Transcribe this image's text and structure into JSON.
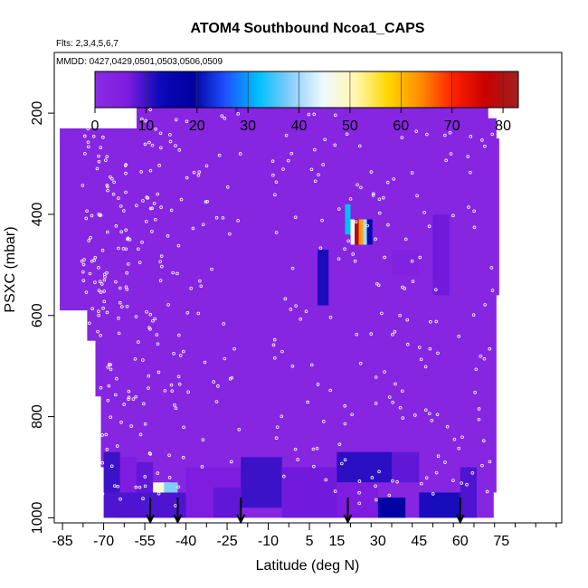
{
  "chart_data": {
    "type": "heatmap",
    "title": "ATOM4 Southbound Ncoa1_CAPS",
    "flights_note": "Flts: 2,3,4,5,6,7",
    "dates_note": "MMDD: 0427,0429,0501,0503,0506,0509",
    "xlabel": "Latitude (deg N)",
    "ylabel": "PSXC (mbar)",
    "xlim": [
      -88,
      97
    ],
    "ylim": [
      1010,
      80
    ],
    "x_ticks": [
      -85,
      -70,
      -55,
      -40,
      -25,
      -10,
      5,
      15,
      30,
      45,
      60,
      75
    ],
    "y_ticks": [
      200,
      400,
      600,
      800,
      1000
    ],
    "colorbar": {
      "min": 0,
      "max": 83,
      "ticks": [
        0,
        10,
        20,
        30,
        40,
        50,
        60,
        70,
        80
      ],
      "colors": [
        "#8a2be2",
        "#7d1ce0",
        "#0a0ab8",
        "#0000a0",
        "#1e50ff",
        "#00bfff",
        "#87cefa",
        "#f0f8ff",
        "#fff8b0",
        "#ffd700",
        "#ff8c00",
        "#ff2000",
        "#c80000",
        "#a02020"
      ]
    },
    "background_value": 2,
    "coverage": [
      [
        -86,
        230,
        590
      ],
      [
        -81,
        230,
        590
      ],
      [
        -76,
        230,
        650
      ],
      [
        -73,
        230,
        760
      ],
      [
        -71,
        230,
        900
      ],
      [
        -69,
        230,
        970
      ],
      [
        -66,
        230,
        1000
      ],
      [
        -62,
        230,
        1000
      ],
      [
        -58,
        175,
        1000
      ],
      [
        -55,
        175,
        1000
      ],
      [
        -50,
        175,
        1000
      ],
      [
        -45,
        175,
        1000
      ],
      [
        -40,
        175,
        1000
      ],
      [
        -30,
        175,
        1000
      ],
      [
        -20,
        175,
        1000
      ],
      [
        -10,
        175,
        1000
      ],
      [
        0,
        175,
        1000
      ],
      [
        10,
        175,
        1000
      ],
      [
        20,
        175,
        1000
      ],
      [
        30,
        175,
        1000
      ],
      [
        40,
        175,
        1000
      ],
      [
        50,
        175,
        1000
      ],
      [
        55,
        175,
        1000
      ],
      [
        60,
        175,
        1000
      ],
      [
        64,
        175,
        1000
      ],
      [
        68,
        175,
        1000
      ],
      [
        70,
        210,
        1000
      ],
      [
        72,
        210,
        950
      ],
      [
        73,
        250,
        560
      ],
      [
        74,
        330,
        370
      ]
    ],
    "patches": [
      {
        "lat": [
          -70,
          -64
        ],
        "p": [
          870,
          950
        ],
        "value": 10
      },
      {
        "lat": [
          -64,
          -58
        ],
        "p": [
          880,
          950
        ],
        "value": 6
      },
      {
        "lat": [
          -58,
          -52
        ],
        "p": [
          890,
          960
        ],
        "value": 8
      },
      {
        "lat": [
          -52,
          -46
        ],
        "p": [
          930,
          980
        ],
        "value": 48
      },
      {
        "lat": [
          -48,
          -43
        ],
        "p": [
          930,
          980
        ],
        "value": 38
      },
      {
        "lat": [
          -70,
          -40
        ],
        "p": [
          950,
          1000
        ],
        "value": 9
      },
      {
        "lat": [
          -40,
          -20
        ],
        "p": [
          900,
          1000
        ],
        "value": 6
      },
      {
        "lat": [
          -20,
          -5
        ],
        "p": [
          880,
          980
        ],
        "value": 10
      },
      {
        "lat": [
          -5,
          15
        ],
        "p": [
          900,
          1000
        ],
        "value": 7
      },
      {
        "lat": [
          15,
          35
        ],
        "p": [
          870,
          930
        ],
        "value": 11
      },
      {
        "lat": [
          35,
          45
        ],
        "p": [
          870,
          930
        ],
        "value": 8
      },
      {
        "lat": [
          15,
          30
        ],
        "p": [
          930,
          1000
        ],
        "value": 6
      },
      {
        "lat": [
          30,
          40
        ],
        "p": [
          960,
          1000
        ],
        "value": 18
      },
      {
        "lat": [
          45,
          60
        ],
        "p": [
          950,
          1000
        ],
        "value": 12
      },
      {
        "lat": [
          60,
          66
        ],
        "p": [
          900,
          1000
        ],
        "value": 9
      },
      {
        "lat": [
          -30,
          -20
        ],
        "p": [
          940,
          1000
        ],
        "value": 8
      },
      {
        "lat": [
          8,
          12
        ],
        "p": [
          470,
          580
        ],
        "value": 12
      },
      {
        "lat": [
          18,
          20
        ],
        "p": [
          380,
          440
        ],
        "value": 32
      },
      {
        "lat": [
          20,
          21.5
        ],
        "p": [
          410,
          460
        ],
        "value": 45
      },
      {
        "lat": [
          21.5,
          23
        ],
        "p": [
          410,
          460
        ],
        "value": 78
      },
      {
        "lat": [
          23,
          24.5
        ],
        "p": [
          410,
          460
        ],
        "value": 62
      },
      {
        "lat": [
          24.5,
          26
        ],
        "p": [
          410,
          460
        ],
        "value": 40
      },
      {
        "lat": [
          26,
          28
        ],
        "p": [
          410,
          460
        ],
        "value": 20
      },
      {
        "lat": [
          50,
          56
        ],
        "p": [
          400,
          560
        ],
        "value": 7
      },
      {
        "lat": [
          35,
          45
        ],
        "p": [
          470,
          520
        ],
        "value": 4
      },
      {
        "lat": [
          -22,
          -21
        ],
        "p": [
          170,
          200
        ],
        "value": 9
      }
    ],
    "profile_markers": [
      -53,
      -43,
      -20,
      19,
      60
    ],
    "sample_points": {
      "seed": 7,
      "groups": [
        {
          "lat": [
            -78,
            -64
          ],
          "p": [
            230,
            960
          ],
          "count": 110
        },
        {
          "lat": [
            -64,
            -40
          ],
          "p": [
            190,
            980
          ],
          "count": 120
        },
        {
          "lat": [
            -40,
            -20
          ],
          "p": [
            200,
            900
          ],
          "count": 40
        },
        {
          "lat": [
            -10,
            15
          ],
          "p": [
            200,
            960
          ],
          "count": 50
        },
        {
          "lat": [
            15,
            45
          ],
          "p": [
            230,
            980
          ],
          "count": 70
        },
        {
          "lat": [
            45,
            72
          ],
          "p": [
            230,
            980
          ],
          "count": 60
        }
      ]
    }
  }
}
